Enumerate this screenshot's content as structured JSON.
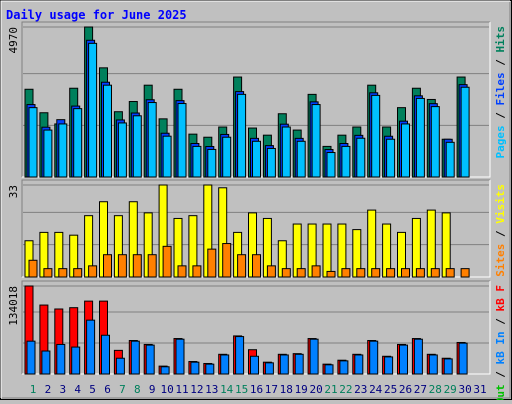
{
  "chart_data": [
    {
      "type": "bar",
      "title": "Daily usage for June 2025",
      "categories": [
        1,
        2,
        3,
        4,
        5,
        6,
        7,
        8,
        9,
        10,
        11,
        12,
        13,
        14,
        15,
        16,
        17,
        18,
        19,
        20,
        21,
        22,
        23,
        24,
        25,
        26,
        27,
        28,
        29,
        30,
        31
      ],
      "category_colors": [
        "#00805c",
        "#000080",
        "#000080",
        "#000080",
        "#000080",
        "#000080",
        "#00805c",
        "#00805c",
        "#000080",
        "#000080",
        "#000080",
        "#000080",
        "#000080",
        "#00805c",
        "#00805c",
        "#000080",
        "#000080",
        "#000080",
        "#000080",
        "#000080",
        "#00805c",
        "#00805c",
        "#000080",
        "#000080",
        "#000080",
        "#000080",
        "#000080",
        "#00805c",
        "#00805c",
        "#000080",
        "#000080"
      ],
      "legend_separator": " / ",
      "ylim": [
        0,
        4970
      ],
      "yticks": [
        4970
      ],
      "series": [
        {
          "name": "Hits",
          "color": "#00805c",
          "values": [
            2907,
            2129,
            1758,
            2941,
            4970,
            3617,
            2163,
            2501,
            3042,
            1927,
            2907,
            1420,
            1318,
            1656,
            3312,
            1622,
            1386,
            2096,
            1555,
            2738,
            1014,
            1386,
            1656,
            3042,
            1656,
            2298,
            2941,
            2569,
            1251,
            3312,
            0
          ]
        },
        {
          "name": "Files",
          "color": "#0040ff",
          "values": [
            2400,
            1650,
            1900,
            2350,
            4530,
            3140,
            1890,
            2120,
            2560,
            1450,
            2530,
            1110,
            1010,
            1410,
            2830,
            1280,
            1040,
            1750,
            1280,
            2490,
            910,
            1110,
            1380,
            2790,
            1350,
            1850,
            2690,
            2430,
            1250,
            3060,
            0
          ]
        },
        {
          "name": "Pages",
          "color": "#00c0ff",
          "values": [
            2298,
            1555,
            1758,
            2265,
            4428,
            3042,
            1791,
            2028,
            2467,
            1352,
            2434,
            1014,
            913,
            1318,
            2738,
            1183,
            946,
            1656,
            1183,
            2400,
            811,
            1014,
            1284,
            2704,
            1251,
            1758,
            2603,
            2332,
            1149,
            2974,
            0
          ]
        }
      ]
    },
    {
      "type": "bar",
      "ylim": [
        0,
        33
      ],
      "yticks": [
        33
      ],
      "series": [
        {
          "name": "Visits",
          "color": "#ffff00",
          "values": [
            13,
            16,
            16,
            15,
            22,
            27,
            22,
            27,
            23,
            33,
            21,
            22,
            33,
            32,
            16,
            23,
            21,
            13,
            19,
            19,
            19,
            19,
            17,
            24,
            19,
            16,
            21,
            24,
            23,
            0,
            0
          ]
        },
        {
          "name": "Sites",
          "color": "#ff8000",
          "values": [
            6,
            3,
            3,
            3,
            4,
            8,
            8,
            8,
            8,
            11,
            4,
            4,
            10,
            12,
            8,
            8,
            4,
            3,
            3,
            4,
            2,
            3,
            3,
            3,
            3,
            3,
            3,
            3,
            3,
            3,
            0
          ]
        }
      ]
    },
    {
      "type": "bar",
      "ylim": [
        0,
        134018
      ],
      "yticks": [
        134018
      ],
      "series": [
        {
          "name": "kB F",
          "color": "#ff0000",
          "values": [
            134018,
            105000,
            99000,
            101000,
            111000,
            111000,
            36000,
            51000,
            45000,
            12000,
            54000,
            19000,
            16000,
            30000,
            58000,
            37000,
            18000,
            30000,
            31000,
            54000,
            15000,
            21000,
            30000,
            51000,
            27000,
            45000,
            54000,
            30000,
            24000,
            48000,
            0
          ]
        },
        {
          "name": "kB In",
          "color": "#0080ff",
          "values": [
            50000,
            35000,
            45000,
            41000,
            82000,
            59000,
            24000,
            50000,
            44000,
            11000,
            53000,
            18000,
            15000,
            29000,
            57000,
            27000,
            17000,
            29000,
            30000,
            53000,
            14000,
            20000,
            29000,
            50000,
            26000,
            44000,
            53000,
            29000,
            23000,
            47000,
            0
          ]
        },
        {
          "name": "kB Out",
          "color": "#00c000",
          "values": [
            0,
            0,
            0,
            0,
            0,
            0,
            0,
            0,
            0,
            0,
            0,
            0,
            0,
            0,
            0,
            0,
            0,
            0,
            0,
            0,
            0,
            0,
            0,
            0,
            0,
            0,
            0,
            0,
            0,
            0,
            0
          ]
        }
      ]
    }
  ]
}
